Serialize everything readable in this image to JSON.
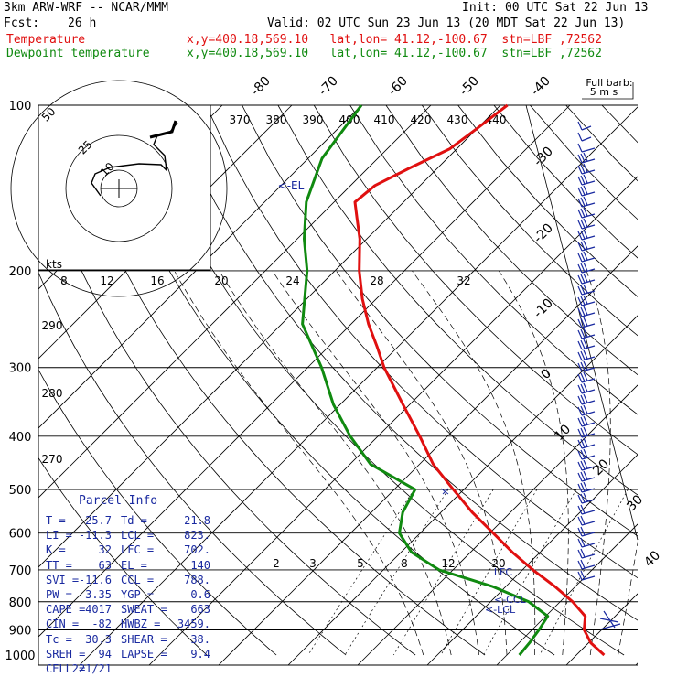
{
  "header": {
    "model": "3km ARW-WRF -- NCAR/MMM",
    "init": "Init: 00 UTC Sat 22 Jun 13",
    "fcst_label": "Fcst:",
    "fcst_value": "26 h",
    "valid": "Valid: 02 UTC Sun 23 Jun 13 (20 MDT Sat 22 Jun 13)",
    "line1_name": "Temperature",
    "line1_info": "x,y=400.18,569.10   lat,lon= 41.12,-100.67  stn=LBF ,72562",
    "line2_name": "Dewpoint temperature",
    "line2_info": "x,y=400.18,569.10   lat,lon= 41.12,-100.67  stn=LBF ,72562"
  },
  "colors": {
    "temperature": "#e01010",
    "dewpoint": "#108a10",
    "params_text": "#1a2aa0",
    "barbs": "#1a2aa0"
  },
  "chart_data": {
    "type": "line",
    "pressure_levels": [
      100,
      200,
      300,
      400,
      500,
      600,
      700,
      800,
      900,
      1000
    ],
    "isotherm_labels": [
      "-80",
      "-70",
      "-60",
      "-50",
      "-40",
      "-30",
      "-20",
      "-10",
      "0",
      "10",
      "20",
      "30",
      "40"
    ],
    "theta_e_labels": [
      "370",
      "380",
      "390",
      "400",
      "410",
      "420",
      "430",
      "440"
    ],
    "mixing_ratio_labels_upper": [
      "8",
      "12",
      "16",
      "20",
      "24",
      "28",
      "32"
    ],
    "mixing_ratio_labels_lower": [
      "2",
      "3",
      "5",
      "8",
      "12",
      "20"
    ],
    "theta_labels": [
      "290",
      "280",
      "270"
    ],
    "hodograph_ring_labels": [
      "50",
      "25",
      "10"
    ],
    "hodograph_units": "kts",
    "wind_legend": [
      "Full barb:",
      "5 m s"
    ],
    "annotations": {
      "el": "<-EL",
      "lfc": "LFC",
      "ccl": "<-CCL",
      "lcl": "<-LCL"
    },
    "series": [
      {
        "name": "Temperature",
        "p": [
          1000,
          950,
          900,
          850,
          800,
          750,
          700,
          650,
          600,
          550,
          500,
          450,
          400,
          350,
          300,
          275,
          250,
          225,
          200,
          175,
          160,
          150,
          140,
          130,
          120,
          110,
          100
        ],
        "t": [
          34.0,
          30.3,
          27.5,
          25.7,
          21.8,
          17.0,
          11.5,
          6.0,
          0.5,
          -5.5,
          -11.5,
          -18.0,
          -24.0,
          -31.0,
          -39.0,
          -43.0,
          -47.5,
          -52.0,
          -56.5,
          -61.0,
          -64.5,
          -67.0,
          -66.5,
          -64.0,
          -61.0,
          -60.0,
          -59.0
        ]
      },
      {
        "name": "Dewpoint temperature",
        "p": [
          1000,
          950,
          900,
          850,
          800,
          750,
          700,
          650,
          600,
          550,
          500,
          450,
          400,
          350,
          300,
          250,
          200,
          175,
          150,
          125,
          100
        ],
        "t": [
          21.8,
          21.5,
          21.0,
          20.3,
          15.5,
          8.0,
          -2.0,
          -8.5,
          -13.0,
          -15.5,
          -17.0,
          -27.0,
          -34.0,
          -41.0,
          -48.0,
          -57.0,
          -64.0,
          -69.0,
          -74.0,
          -78.0,
          -80.0
        ]
      }
    ]
  },
  "parcel_info": {
    "title": "Parcel Info",
    "rows": [
      {
        "l1": "T",
        "v1": "25.7",
        "l2": "Td",
        "v2": "21.8"
      },
      {
        "l1": "LI",
        "v1": "-11.3",
        "l2": "LCL",
        "v2": "823."
      },
      {
        "l1": "K",
        "v1": "32",
        "l2": "LFC",
        "v2": "702."
      },
      {
        "l1": "TT",
        "v1": "63",
        "l2": "EL",
        "v2": "140"
      },
      {
        "l1": "SVI",
        "v1": "-11.6",
        "l2": "CCL",
        "v2": "788."
      },
      {
        "l1": "PW",
        "v1": "3.35",
        "l2": "YGP",
        "v2": "0.6"
      },
      {
        "l1": "CAPE",
        "v1": "4017",
        "l2": "SWEAT",
        "v2": "663"
      },
      {
        "l1": "CIN",
        "v1": "-82",
        "l2": "HWBZ",
        "v2": "3459."
      },
      {
        "l1": "Tc",
        "v1": "30.3",
        "l2": "SHEAR",
        "v2": "38."
      },
      {
        "l1": "SREH",
        "v1": "94",
        "l2": "LAPSE",
        "v2": "9.4"
      },
      {
        "l1": "CELL",
        "v1": "221/21",
        "l2": "",
        "v2": ""
      }
    ]
  }
}
